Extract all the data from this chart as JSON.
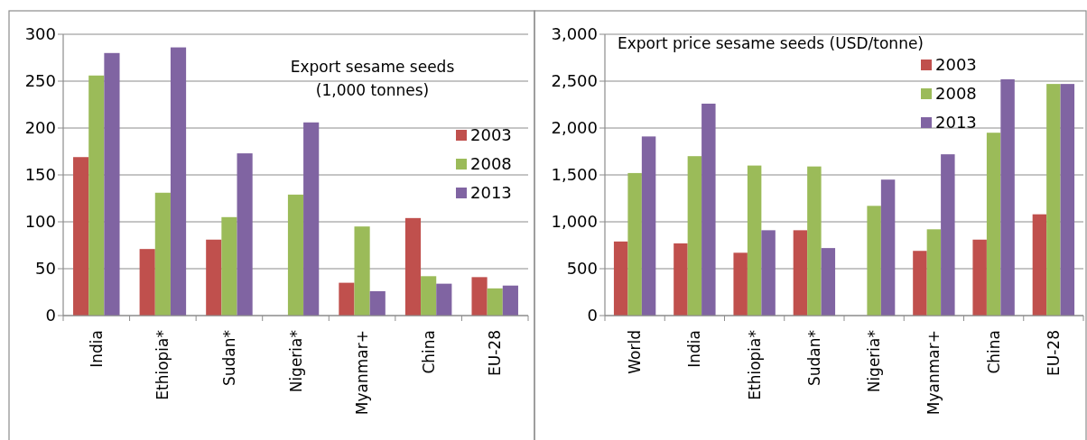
{
  "chart_data": [
    {
      "type": "bar",
      "title": "Export  sesame seeds",
      "subtitle": "(1,000 tonnes)",
      "categories": [
        "India",
        "Ethiopia*",
        "Sudan*",
        "Nigeria*",
        "Myanmar+",
        "China",
        "EU-28"
      ],
      "series": [
        {
          "name": "2003",
          "color": "#c0504d",
          "values": [
            169,
            71,
            81,
            null,
            35,
            104,
            41
          ]
        },
        {
          "name": "2008",
          "color": "#9bbb59",
          "values": [
            256,
            131,
            105,
            129,
            95,
            42,
            29
          ]
        },
        {
          "name": "2013",
          "color": "#8064a2",
          "values": [
            280,
            286,
            173,
            206,
            26,
            34,
            32
          ]
        }
      ],
      "ylim": [
        0,
        300
      ],
      "yticks": [
        0,
        50,
        100,
        150,
        200,
        250,
        300
      ],
      "grid": "y",
      "legend": "right"
    },
    {
      "type": "bar",
      "title": "Export price  sesame seeds (USD/tonne)",
      "categories": [
        "World",
        "India",
        "Ethiopia*",
        "Sudan*",
        "Nigeria*",
        "Myanmar+",
        "China",
        "EU-28"
      ],
      "series": [
        {
          "name": "2003",
          "color": "#c0504d",
          "values": [
            790,
            770,
            670,
            910,
            null,
            690,
            810,
            1080
          ]
        },
        {
          "name": "2008",
          "color": "#9bbb59",
          "values": [
            1520,
            1700,
            1600,
            1590,
            1170,
            920,
            1950,
            2470
          ]
        },
        {
          "name": "2013",
          "color": "#8064a2",
          "values": [
            1910,
            2260,
            910,
            720,
            1450,
            1720,
            2520,
            2470
          ]
        }
      ],
      "ylim": [
        0,
        3000
      ],
      "yticks": [
        0,
        {
          "value": 500,
          "label": "500"
        },
        {
          "value": 1000,
          "label": "1,000"
        },
        {
          "value": 1500,
          "label": "1,500"
        },
        {
          "value": 2000,
          "label": "2,000"
        },
        {
          "value": 2500,
          "label": "2,500"
        },
        {
          "value": 3000,
          "label": "3,000"
        }
      ],
      "grid": "y",
      "legend": "top right"
    }
  ]
}
